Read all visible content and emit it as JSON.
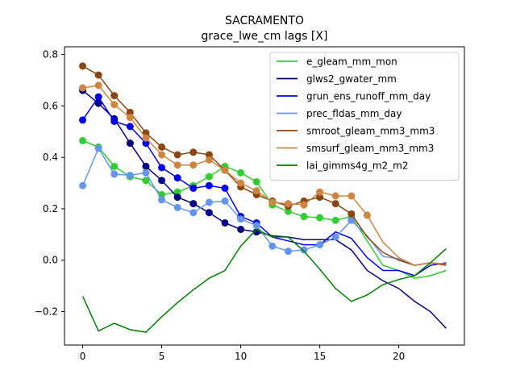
{
  "chart_data": {
    "type": "line",
    "title": "SACRAMENTO",
    "subtitle": "grace_lwe_cm lags [X]",
    "xlabel": "",
    "ylabel": "",
    "xlim": [
      -1.15,
      24.15
    ],
    "ylim": [
      -0.33,
      0.83
    ],
    "xticks": [
      0,
      5,
      10,
      15,
      20
    ],
    "yticks": [
      -0.2,
      0.0,
      0.2,
      0.4,
      0.6,
      0.8
    ],
    "ytick_labels": [
      "−0.2",
      "0.0",
      "0.2",
      "0.4",
      "0.6",
      "0.8"
    ],
    "grid": false,
    "legend_position": "top-right",
    "series": [
      {
        "name": "e_gleam_mm_mon",
        "color": "#32cd32",
        "x": [
          0,
          1,
          2,
          3,
          4,
          5,
          6,
          7,
          8,
          9,
          10,
          11,
          12,
          13,
          14,
          15,
          16,
          17,
          18,
          19,
          20,
          21,
          22,
          23
        ],
        "values": [
          0.465,
          0.44,
          0.365,
          0.325,
          0.31,
          0.255,
          0.265,
          0.29,
          0.325,
          0.365,
          0.34,
          0.305,
          0.215,
          0.19,
          0.17,
          0.165,
          0.155,
          0.17,
          0.075,
          -0.02,
          -0.04,
          -0.07,
          -0.06,
          -0.04
        ],
        "marked_points": 18
      },
      {
        "name": "glws2_gwater_mm",
        "color": "#000080",
        "x": [
          0,
          1,
          2,
          3,
          4,
          5,
          6,
          7,
          8,
          9,
          10,
          11,
          12,
          13,
          14,
          15,
          16,
          17,
          18,
          19,
          20,
          21,
          22,
          23
        ],
        "values": [
          0.66,
          0.61,
          0.55,
          0.455,
          0.365,
          0.31,
          0.245,
          0.22,
          0.185,
          0.145,
          0.12,
          0.11,
          0.095,
          0.09,
          0.08,
          0.08,
          0.08,
          0.04,
          -0.04,
          -0.08,
          -0.11,
          -0.16,
          -0.2,
          -0.265
        ],
        "marked_points": 12
      },
      {
        "name": "grun_ens_runoff_mm_day",
        "color": "#0000ee",
        "x": [
          0,
          1,
          2,
          3,
          4,
          5,
          6,
          7,
          8,
          9,
          10,
          11,
          12,
          13,
          14,
          15,
          16,
          17,
          18,
          19,
          20,
          21,
          22,
          23
        ],
        "values": [
          0.545,
          0.635,
          0.54,
          0.52,
          0.455,
          0.36,
          0.32,
          0.28,
          0.29,
          0.28,
          0.17,
          0.145,
          0.09,
          0.075,
          0.06,
          0.06,
          0.11,
          0.085,
          0.01,
          -0.04,
          -0.04,
          -0.06,
          -0.02,
          -0.01
        ],
        "marked_points": 12
      },
      {
        "name": "prec_fldas_mm_day",
        "color": "#6495ed",
        "x": [
          0,
          1,
          2,
          3,
          4,
          5,
          6,
          7,
          8,
          9,
          10,
          11,
          12,
          13,
          14,
          15,
          16,
          17,
          18,
          19,
          20,
          21,
          22,
          23
        ],
        "values": [
          0.29,
          0.435,
          0.335,
          0.33,
          0.34,
          0.235,
          0.205,
          0.185,
          0.225,
          0.23,
          0.16,
          0.135,
          0.055,
          0.035,
          0.04,
          0.06,
          0.09,
          0.155,
          0.095,
          0.015,
          0.005,
          -0.02,
          -0.01,
          -0.015
        ],
        "marked_points": 18
      },
      {
        "name": "smroot_gleam_mm3_mm3",
        "color": "#8b4513",
        "x": [
          0,
          1,
          2,
          3,
          4,
          5,
          6,
          7,
          8,
          9,
          10,
          11,
          12,
          13,
          14,
          15,
          16,
          17,
          18,
          19,
          20,
          21,
          22,
          23
        ],
        "values": [
          0.755,
          0.72,
          0.64,
          0.575,
          0.495,
          0.44,
          0.41,
          0.42,
          0.41,
          0.35,
          0.285,
          0.255,
          0.23,
          0.21,
          0.23,
          0.245,
          0.22,
          0.18,
          0.09,
          0.03,
          0.0,
          -0.02,
          -0.01,
          -0.02
        ],
        "marked_points": 18
      },
      {
        "name": "smsurf_gleam_mm3_mm3",
        "color": "#cd853f",
        "x": [
          0,
          1,
          2,
          3,
          4,
          5,
          6,
          7,
          8,
          9,
          10,
          11,
          12,
          13,
          14,
          15,
          16,
          17,
          18,
          19,
          20,
          21,
          22,
          23
        ],
        "values": [
          0.67,
          0.68,
          0.605,
          0.555,
          0.475,
          0.41,
          0.37,
          0.37,
          0.39,
          0.35,
          0.3,
          0.27,
          0.225,
          0.22,
          0.215,
          0.265,
          0.25,
          0.25,
          0.175,
          0.07,
          0.01,
          -0.02,
          -0.01,
          -0.015
        ],
        "marked_points": 19
      },
      {
        "name": "lai_gimms4g_m2_m2",
        "color": "#008000",
        "x": [
          0,
          1,
          2,
          3,
          4,
          5,
          6,
          7,
          8,
          9,
          10,
          11,
          12,
          13,
          14,
          15,
          16,
          17,
          18,
          19,
          20,
          21,
          22,
          23
        ],
        "values": [
          -0.14,
          -0.275,
          -0.245,
          -0.27,
          -0.28,
          -0.22,
          -0.165,
          -0.115,
          -0.07,
          -0.04,
          0.055,
          0.12,
          0.09,
          0.09,
          0.035,
          -0.035,
          -0.11,
          -0.16,
          -0.135,
          -0.095,
          -0.075,
          -0.06,
          -0.01,
          0.045
        ],
        "marked_points": 0
      }
    ]
  }
}
